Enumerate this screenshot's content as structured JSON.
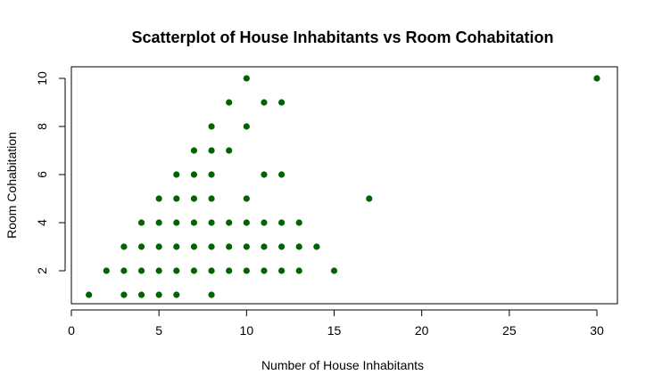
{
  "chart_data": {
    "type": "scatter",
    "title": "Scatterplot of House Inhabitants vs Room Cohabitation",
    "xlabel": "Number of House Inhabitants",
    "ylabel": "Room Cohabitation",
    "xlim": [
      0,
      30
    ],
    "ylim": [
      1,
      10
    ],
    "xticks": [
      "0",
      "5",
      "10",
      "15",
      "20",
      "25",
      "30"
    ],
    "yticks": [
      "2",
      "4",
      "6",
      "8",
      "10"
    ],
    "grid": false,
    "point_color": "#006400",
    "points": [
      [
        1,
        1
      ],
      [
        3,
        1
      ],
      [
        4,
        1
      ],
      [
        5,
        1
      ],
      [
        6,
        1
      ],
      [
        8,
        1
      ],
      [
        2,
        2
      ],
      [
        3,
        2
      ],
      [
        4,
        2
      ],
      [
        5,
        2
      ],
      [
        6,
        2
      ],
      [
        7,
        2
      ],
      [
        8,
        2
      ],
      [
        9,
        2
      ],
      [
        10,
        2
      ],
      [
        11,
        2
      ],
      [
        12,
        2
      ],
      [
        13,
        2
      ],
      [
        15,
        2
      ],
      [
        3,
        3
      ],
      [
        4,
        3
      ],
      [
        5,
        3
      ],
      [
        6,
        3
      ],
      [
        7,
        3
      ],
      [
        8,
        3
      ],
      [
        9,
        3
      ],
      [
        10,
        3
      ],
      [
        11,
        3
      ],
      [
        12,
        3
      ],
      [
        13,
        3
      ],
      [
        14,
        3
      ],
      [
        4,
        4
      ],
      [
        5,
        4
      ],
      [
        6,
        4
      ],
      [
        7,
        4
      ],
      [
        8,
        4
      ],
      [
        9,
        4
      ],
      [
        10,
        4
      ],
      [
        11,
        4
      ],
      [
        12,
        4
      ],
      [
        13,
        4
      ],
      [
        5,
        5
      ],
      [
        6,
        5
      ],
      [
        7,
        5
      ],
      [
        8,
        5
      ],
      [
        10,
        5
      ],
      [
        17,
        5
      ],
      [
        6,
        6
      ],
      [
        7,
        6
      ],
      [
        8,
        6
      ],
      [
        11,
        6
      ],
      [
        12,
        6
      ],
      [
        7,
        7
      ],
      [
        8,
        7
      ],
      [
        9,
        7
      ],
      [
        8,
        8
      ],
      [
        10,
        8
      ],
      [
        9,
        9
      ],
      [
        11,
        9
      ],
      [
        12,
        9
      ],
      [
        10,
        10
      ],
      [
        30,
        10
      ]
    ]
  }
}
